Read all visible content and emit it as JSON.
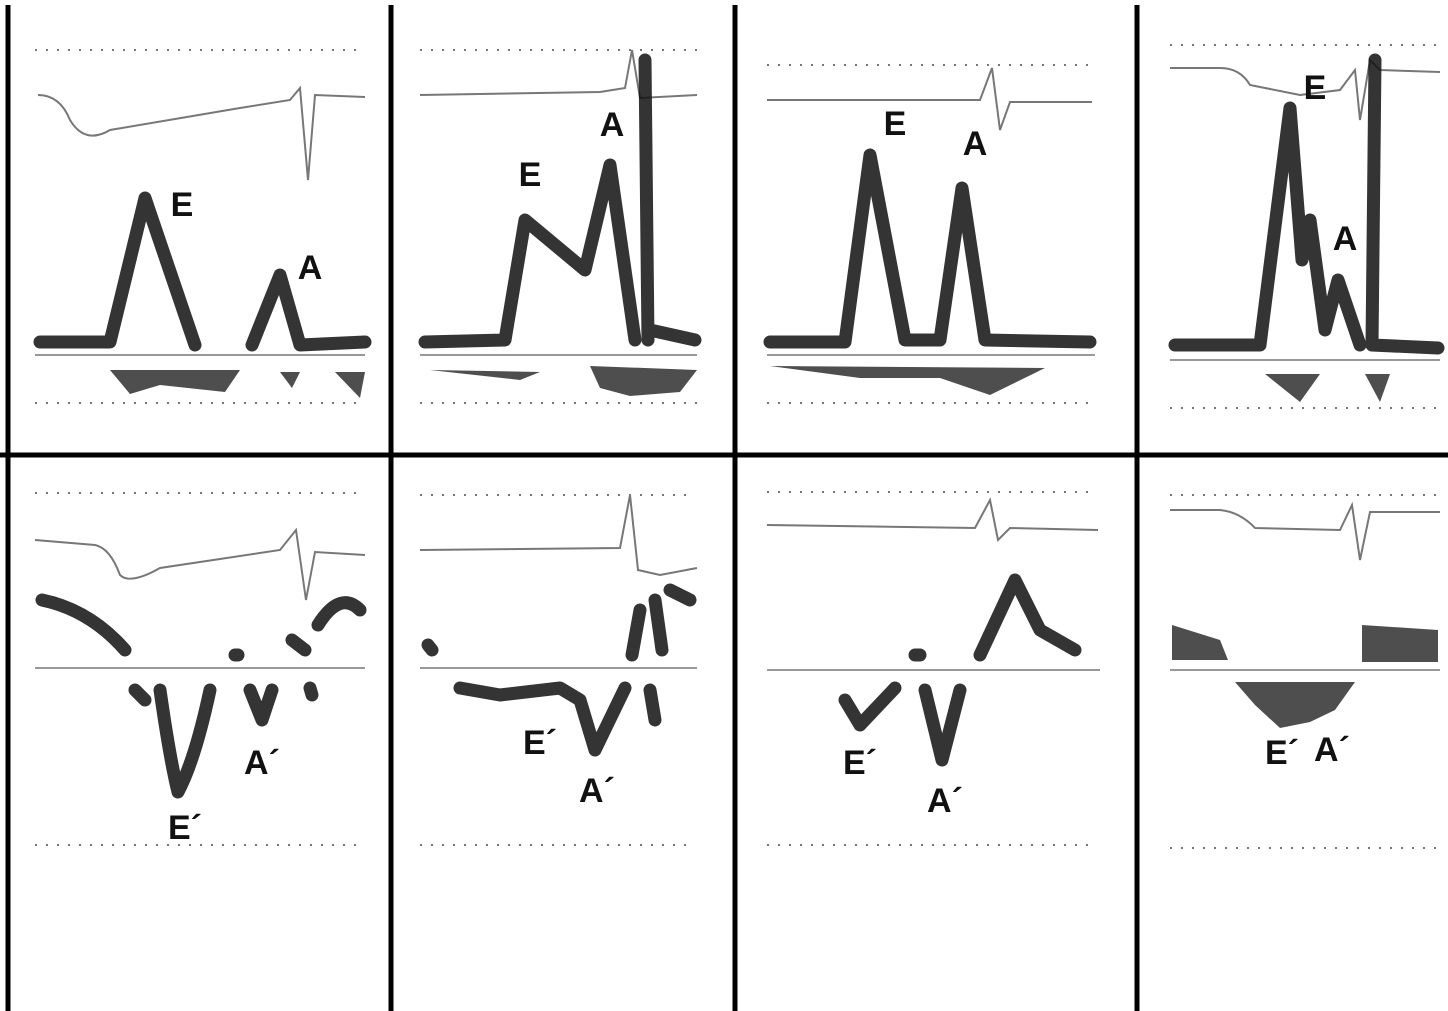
{
  "panels": [
    {
      "labels": [
        "E",
        "A"
      ]
    },
    {
      "labels": [
        "E",
        "A"
      ]
    },
    {
      "labels": [
        "E",
        "A"
      ]
    },
    {
      "labels": [
        "E",
        "A"
      ]
    },
    {
      "labels": [
        "E´",
        "A´"
      ]
    },
    {
      "labels": [
        "E´",
        "A´"
      ]
    },
    {
      "labels": [
        "E´",
        "A´"
      ]
    },
    {
      "labels": [
        "E´",
        "A´"
      ]
    }
  ]
}
